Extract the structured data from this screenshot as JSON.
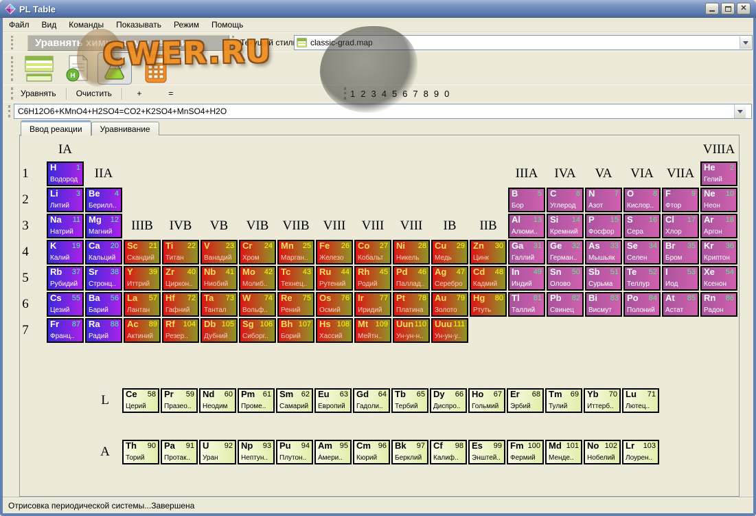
{
  "window": {
    "title": "PL Table",
    "buttons": [
      "minimize-icon",
      "maximize-icon",
      "close-icon"
    ]
  },
  "menu": {
    "items": [
      "Файл",
      "Вид",
      "Команды",
      "Показывать",
      "Режим",
      "Помощь"
    ]
  },
  "toolbar": {
    "banner": "Уравнять химическую реакцию",
    "style_label": "Текущий стиль:",
    "style_value": "classic-grad.map",
    "icons": [
      "periodic-table-icon",
      "element-info-icon",
      "reaction-flask-icon",
      "calculator-icon"
    ]
  },
  "watermark": {
    "text": "CWER.RU"
  },
  "equation_bar": {
    "buttons": [
      "Уравнять",
      "Очистить",
      "+",
      "="
    ],
    "digits": [
      "1",
      "2",
      "3",
      "4",
      "5",
      "6",
      "7",
      "8",
      "9",
      "0"
    ]
  },
  "equation_input": {
    "value": "C6H12O6+KMnO4+H2SO4=CO2+K2SO4+MnSO4+H2O"
  },
  "tabs": [
    {
      "label": "Ввод реакции"
    },
    {
      "label": "Уравнивание"
    }
  ],
  "status_bar": {
    "text": "Отрисовка периодической системы...Завершена"
  },
  "colors": {
    "titlebar": "#6181b5",
    "client_bg": "#ece9d8",
    "s": {
      "bg1": "#3a2ad8",
      "bg2": "#aa22e8",
      "sym": "#ffffff",
      "num": "#44ffaa",
      "name": "#ffffff"
    },
    "d": {
      "bg1": "#dd1414",
      "bg2": "#8f9428",
      "sym": "#ffe060",
      "num": "#ffff00",
      "name": "#ffccc0"
    },
    "p": {
      "bg1": "#a8549e",
      "bg2": "#d060ae",
      "sym": "#ffffff",
      "num": "#55ee88",
      "name": "#ffffff"
    },
    "f": {
      "bg1": "#fafae6",
      "bg2": "#e2eeaa",
      "sym": "#000000",
      "num": "#000000",
      "name": "#000000"
    }
  },
  "periodic_table": {
    "group_labels": [
      {
        "text": "IA",
        "row": 0,
        "col": 1
      },
      {
        "text": "VIIIA",
        "row": 0,
        "col": 18
      },
      {
        "text": "IIA",
        "row": 1,
        "col": 2
      },
      {
        "text": "IIIA",
        "row": 1,
        "col": 13
      },
      {
        "text": "IVA",
        "row": 1,
        "col": 14
      },
      {
        "text": "VA",
        "row": 1,
        "col": 15
      },
      {
        "text": "VIA",
        "row": 1,
        "col": 16
      },
      {
        "text": "VIIA",
        "row": 1,
        "col": 17
      },
      {
        "text": "IIIB",
        "row": 3,
        "col": 3
      },
      {
        "text": "IVB",
        "row": 3,
        "col": 4
      },
      {
        "text": "VB",
        "row": 3,
        "col": 5
      },
      {
        "text": "VIB",
        "row": 3,
        "col": 6
      },
      {
        "text": "VIIB",
        "row": 3,
        "col": 7
      },
      {
        "text": "VIII",
        "row": 3,
        "col": 8
      },
      {
        "text": "VIII",
        "row": 3,
        "col": 9
      },
      {
        "text": "VIII",
        "row": 3,
        "col": 10
      },
      {
        "text": "IB",
        "row": 3,
        "col": 11
      },
      {
        "text": "IIB",
        "row": 3,
        "col": 12
      }
    ],
    "periods": [
      {
        "label": "1",
        "cells": [
          {
            "col": 1,
            "sym": "H",
            "num": "1",
            "name": "Водород",
            "cat": "s"
          },
          {
            "col": 18,
            "sym": "He",
            "num": "2",
            "name": "Гелий",
            "cat": "p"
          }
        ]
      },
      {
        "label": "2",
        "cells": [
          {
            "col": 1,
            "sym": "Li",
            "num": "3",
            "name": "Литий",
            "cat": "s"
          },
          {
            "col": 2,
            "sym": "Be",
            "num": "4",
            "name": "Берилл..",
            "cat": "s"
          },
          {
            "col": 13,
            "sym": "B",
            "num": "5",
            "name": "Бор",
            "cat": "p"
          },
          {
            "col": 14,
            "sym": "C",
            "num": "6",
            "name": "Углерод",
            "cat": "p"
          },
          {
            "col": 15,
            "sym": "N",
            "num": "7",
            "name": "Азот",
            "cat": "p"
          },
          {
            "col": 16,
            "sym": "O",
            "num": "8",
            "name": "Кислор..",
            "cat": "p"
          },
          {
            "col": 17,
            "sym": "F",
            "num": "9",
            "name": "Фтор",
            "cat": "p"
          },
          {
            "col": 18,
            "sym": "Ne",
            "num": "10",
            "name": "Неон",
            "cat": "p"
          }
        ]
      },
      {
        "label": "3",
        "cells": [
          {
            "col": 1,
            "sym": "Na",
            "num": "11",
            "name": "Натрий",
            "cat": "s"
          },
          {
            "col": 2,
            "sym": "Mg",
            "num": "12",
            "name": "Магний",
            "cat": "s"
          },
          {
            "col": 13,
            "sym": "Al",
            "num": "13",
            "name": "Алюми..",
            "cat": "p"
          },
          {
            "col": 14,
            "sym": "Si",
            "num": "14",
            "name": "Кремний",
            "cat": "p"
          },
          {
            "col": 15,
            "sym": "P",
            "num": "15",
            "name": "Фосфор",
            "cat": "p"
          },
          {
            "col": 16,
            "sym": "S",
            "num": "16",
            "name": "Сера",
            "cat": "p"
          },
          {
            "col": 17,
            "sym": "Cl",
            "num": "17",
            "name": "Хлор",
            "cat": "p"
          },
          {
            "col": 18,
            "sym": "Ar",
            "num": "18",
            "name": "Аргон",
            "cat": "p"
          }
        ]
      },
      {
        "label": "4",
        "cells": [
          {
            "col": 1,
            "sym": "K",
            "num": "19",
            "name": "Калий",
            "cat": "s"
          },
          {
            "col": 2,
            "sym": "Ca",
            "num": "20",
            "name": "Кальций",
            "cat": "s"
          },
          {
            "col": 3,
            "sym": "Sc",
            "num": "21",
            "name": "Скандий",
            "cat": "d"
          },
          {
            "col": 4,
            "sym": "Ti",
            "num": "22",
            "name": "Титан",
            "cat": "d"
          },
          {
            "col": 5,
            "sym": "V",
            "num": "23",
            "name": "Ванадий",
            "cat": "d"
          },
          {
            "col": 6,
            "sym": "Cr",
            "num": "24",
            "name": "Хром",
            "cat": "d"
          },
          {
            "col": 7,
            "sym": "Mn",
            "num": "25",
            "name": "Марган..",
            "cat": "d"
          },
          {
            "col": 8,
            "sym": "Fe",
            "num": "26",
            "name": "Железо",
            "cat": "d"
          },
          {
            "col": 9,
            "sym": "Co",
            "num": "27",
            "name": "Кобальт",
            "cat": "d"
          },
          {
            "col": 10,
            "sym": "Ni",
            "num": "28",
            "name": "Никель",
            "cat": "d"
          },
          {
            "col": 11,
            "sym": "Cu",
            "num": "29",
            "name": "Медь",
            "cat": "d"
          },
          {
            "col": 12,
            "sym": "Zn",
            "num": "30",
            "name": "Цинк",
            "cat": "d"
          },
          {
            "col": 13,
            "sym": "Ga",
            "num": "31",
            "name": "Галлий",
            "cat": "p"
          },
          {
            "col": 14,
            "sym": "Ge",
            "num": "32",
            "name": "Герман..",
            "cat": "p"
          },
          {
            "col": 15,
            "sym": "As",
            "num": "33",
            "name": "Мышьяк",
            "cat": "p"
          },
          {
            "col": 16,
            "sym": "Se",
            "num": "34",
            "name": "Селен",
            "cat": "p"
          },
          {
            "col": 17,
            "sym": "Br",
            "num": "35",
            "name": "Бром",
            "cat": "p"
          },
          {
            "col": 18,
            "sym": "Kr",
            "num": "36",
            "name": "Криптон",
            "cat": "p"
          }
        ]
      },
      {
        "label": "5",
        "cells": [
          {
            "col": 1,
            "sym": "Rb",
            "num": "37",
            "name": "Рубидий",
            "cat": "s"
          },
          {
            "col": 2,
            "sym": "Sr",
            "num": "38",
            "name": "Стронц..",
            "cat": "s"
          },
          {
            "col": 3,
            "sym": "Y",
            "num": "39",
            "name": "Иттрий",
            "cat": "d"
          },
          {
            "col": 4,
            "sym": "Zr",
            "num": "40",
            "name": "Циркон..",
            "cat": "d"
          },
          {
            "col": 5,
            "sym": "Nb",
            "num": "41",
            "name": "Ниобий",
            "cat": "d"
          },
          {
            "col": 6,
            "sym": "Mo",
            "num": "42",
            "name": "Молиб..",
            "cat": "d"
          },
          {
            "col": 7,
            "sym": "Tc",
            "num": "43",
            "name": "Технец..",
            "cat": "d"
          },
          {
            "col": 8,
            "sym": "Ru",
            "num": "44",
            "name": "Рутений",
            "cat": "d"
          },
          {
            "col": 9,
            "sym": "Rh",
            "num": "45",
            "name": "Родий",
            "cat": "d"
          },
          {
            "col": 10,
            "sym": "Pd",
            "num": "46",
            "name": "Паллад..",
            "cat": "d"
          },
          {
            "col": 11,
            "sym": "Ag",
            "num": "47",
            "name": "Серебро",
            "cat": "d"
          },
          {
            "col": 12,
            "sym": "Cd",
            "num": "48",
            "name": "Кадмий",
            "cat": "d"
          },
          {
            "col": 13,
            "sym": "In",
            "num": "49",
            "name": "Индий",
            "cat": "p"
          },
          {
            "col": 14,
            "sym": "Sn",
            "num": "50",
            "name": "Олово",
            "cat": "p"
          },
          {
            "col": 15,
            "sym": "Sb",
            "num": "51",
            "name": "Сурьма",
            "cat": "p"
          },
          {
            "col": 16,
            "sym": "Te",
            "num": "52",
            "name": "Теллур",
            "cat": "p"
          },
          {
            "col": 17,
            "sym": "I",
            "num": "53",
            "name": "Иод",
            "cat": "p"
          },
          {
            "col": 18,
            "sym": "Xe",
            "num": "54",
            "name": "Ксенон",
            "cat": "p"
          }
        ]
      },
      {
        "label": "6",
        "cells": [
          {
            "col": 1,
            "sym": "Cs",
            "num": "55",
            "name": "Цезий",
            "cat": "s"
          },
          {
            "col": 2,
            "sym": "Ba",
            "num": "56",
            "name": "Барий",
            "cat": "s"
          },
          {
            "col": 3,
            "sym": "La",
            "num": "57",
            "name": "Лантан",
            "cat": "d"
          },
          {
            "col": 4,
            "sym": "Hf",
            "num": "72",
            "name": "Гафний",
            "cat": "d"
          },
          {
            "col": 5,
            "sym": "Ta",
            "num": "73",
            "name": "Тантал",
            "cat": "d"
          },
          {
            "col": 6,
            "sym": "W",
            "num": "74",
            "name": "Вольф..",
            "cat": "d"
          },
          {
            "col": 7,
            "sym": "Re",
            "num": "75",
            "name": "Рений",
            "cat": "d"
          },
          {
            "col": 8,
            "sym": "Os",
            "num": "76",
            "name": "Осмий",
            "cat": "d"
          },
          {
            "col": 9,
            "sym": "Ir",
            "num": "77",
            "name": "Иридий",
            "cat": "d"
          },
          {
            "col": 10,
            "sym": "Pt",
            "num": "78",
            "name": "Платина",
            "cat": "d"
          },
          {
            "col": 11,
            "sym": "Au",
            "num": "79",
            "name": "Золото",
            "cat": "d"
          },
          {
            "col": 12,
            "sym": "Hg",
            "num": "80",
            "name": "Ртуть",
            "cat": "d"
          },
          {
            "col": 13,
            "sym": "Tl",
            "num": "81",
            "name": "Таллий",
            "cat": "p"
          },
          {
            "col": 14,
            "sym": "Pb",
            "num": "82",
            "name": "Свинец",
            "cat": "p"
          },
          {
            "col": 15,
            "sym": "Bi",
            "num": "83",
            "name": "Висмут",
            "cat": "p"
          },
          {
            "col": 16,
            "sym": "Po",
            "num": "84",
            "name": "Полоний",
            "cat": "p"
          },
          {
            "col": 17,
            "sym": "At",
            "num": "85",
            "name": "Астат",
            "cat": "p"
          },
          {
            "col": 18,
            "sym": "Rn",
            "num": "86",
            "name": "Радон",
            "cat": "p"
          }
        ]
      },
      {
        "label": "7",
        "cells": [
          {
            "col": 1,
            "sym": "Fr",
            "num": "87",
            "name": "Франц..",
            "cat": "s"
          },
          {
            "col": 2,
            "sym": "Ra",
            "num": "88",
            "name": "Радий",
            "cat": "s"
          },
          {
            "col": 3,
            "sym": "Ac",
            "num": "89",
            "name": "Актиний",
            "cat": "d"
          },
          {
            "col": 4,
            "sym": "Rf",
            "num": "104",
            "name": "Резер..",
            "cat": "d"
          },
          {
            "col": 5,
            "sym": "Db",
            "num": "105",
            "name": "Дубний",
            "cat": "d"
          },
          {
            "col": 6,
            "sym": "Sg",
            "num": "106",
            "name": "Сиборг..",
            "cat": "d"
          },
          {
            "col": 7,
            "sym": "Bh",
            "num": "107",
            "name": "Борий",
            "cat": "d"
          },
          {
            "col": 8,
            "sym": "Hs",
            "num": "108",
            "name": "Хассий",
            "cat": "d"
          },
          {
            "col": 9,
            "sym": "Mt",
            "num": "109",
            "name": "Мейтн..",
            "cat": "d"
          },
          {
            "col": 10,
            "sym": "Uun",
            "num": "110",
            "name": "Ун-ун-н..",
            "cat": "d"
          },
          {
            "col": 11,
            "sym": "Uuu",
            "num": "111",
            "name": "Ун-ун-у..",
            "cat": "d"
          }
        ]
      }
    ],
    "fblock": [
      {
        "label": "L",
        "cells": [
          {
            "sym": "Ce",
            "num": "58",
            "name": "Церий",
            "cat": "f"
          },
          {
            "sym": "Pr",
            "num": "59",
            "name": "Празео..",
            "cat": "f"
          },
          {
            "sym": "Nd",
            "num": "60",
            "name": "Неодим",
            "cat": "f"
          },
          {
            "sym": "Pm",
            "num": "61",
            "name": "Проме..",
            "cat": "f"
          },
          {
            "sym": "Sm",
            "num": "62",
            "name": "Самарий",
            "cat": "f"
          },
          {
            "sym": "Eu",
            "num": "63",
            "name": "Европий",
            "cat": "f"
          },
          {
            "sym": "Gd",
            "num": "64",
            "name": "Гадоли..",
            "cat": "f"
          },
          {
            "sym": "Tb",
            "num": "65",
            "name": "Тербий",
            "cat": "f"
          },
          {
            "sym": "Dy",
            "num": "66",
            "name": "Диспро..",
            "cat": "f"
          },
          {
            "sym": "Ho",
            "num": "67",
            "name": "Гольмий",
            "cat": "f"
          },
          {
            "sym": "Er",
            "num": "68",
            "name": "Эрбий",
            "cat": "f"
          },
          {
            "sym": "Tm",
            "num": "69",
            "name": "Тулий",
            "cat": "f"
          },
          {
            "sym": "Yb",
            "num": "70",
            "name": "Иттерб..",
            "cat": "f"
          },
          {
            "sym": "Lu",
            "num": "71",
            "name": "Лютец..",
            "cat": "f"
          }
        ]
      },
      {
        "label": "A",
        "cells": [
          {
            "sym": "Th",
            "num": "90",
            "name": "Торий",
            "cat": "f"
          },
          {
            "sym": "Pa",
            "num": "91",
            "name": "Протак..",
            "cat": "f"
          },
          {
            "sym": "U",
            "num": "92",
            "name": "Уран",
            "cat": "f"
          },
          {
            "sym": "Np",
            "num": "93",
            "name": "Нептун..",
            "cat": "f"
          },
          {
            "sym": "Pu",
            "num": "94",
            "name": "Плутон..",
            "cat": "f"
          },
          {
            "sym": "Am",
            "num": "95",
            "name": "Амери..",
            "cat": "f"
          },
          {
            "sym": "Cm",
            "num": "96",
            "name": "Кюрий",
            "cat": "f"
          },
          {
            "sym": "Bk",
            "num": "97",
            "name": "Берклий",
            "cat": "f"
          },
          {
            "sym": "Cf",
            "num": "98",
            "name": "Калиф..",
            "cat": "f"
          },
          {
            "sym": "Es",
            "num": "99",
            "name": "Энштей..",
            "cat": "f"
          },
          {
            "sym": "Fm",
            "num": "100",
            "name": "Фермий",
            "cat": "f"
          },
          {
            "sym": "Md",
            "num": "101",
            "name": "Менде..",
            "cat": "f"
          },
          {
            "sym": "No",
            "num": "102",
            "name": "Нобелий",
            "cat": "f"
          },
          {
            "sym": "Lr",
            "num": "103",
            "name": "Лоурен..",
            "cat": "f"
          }
        ]
      }
    ]
  }
}
